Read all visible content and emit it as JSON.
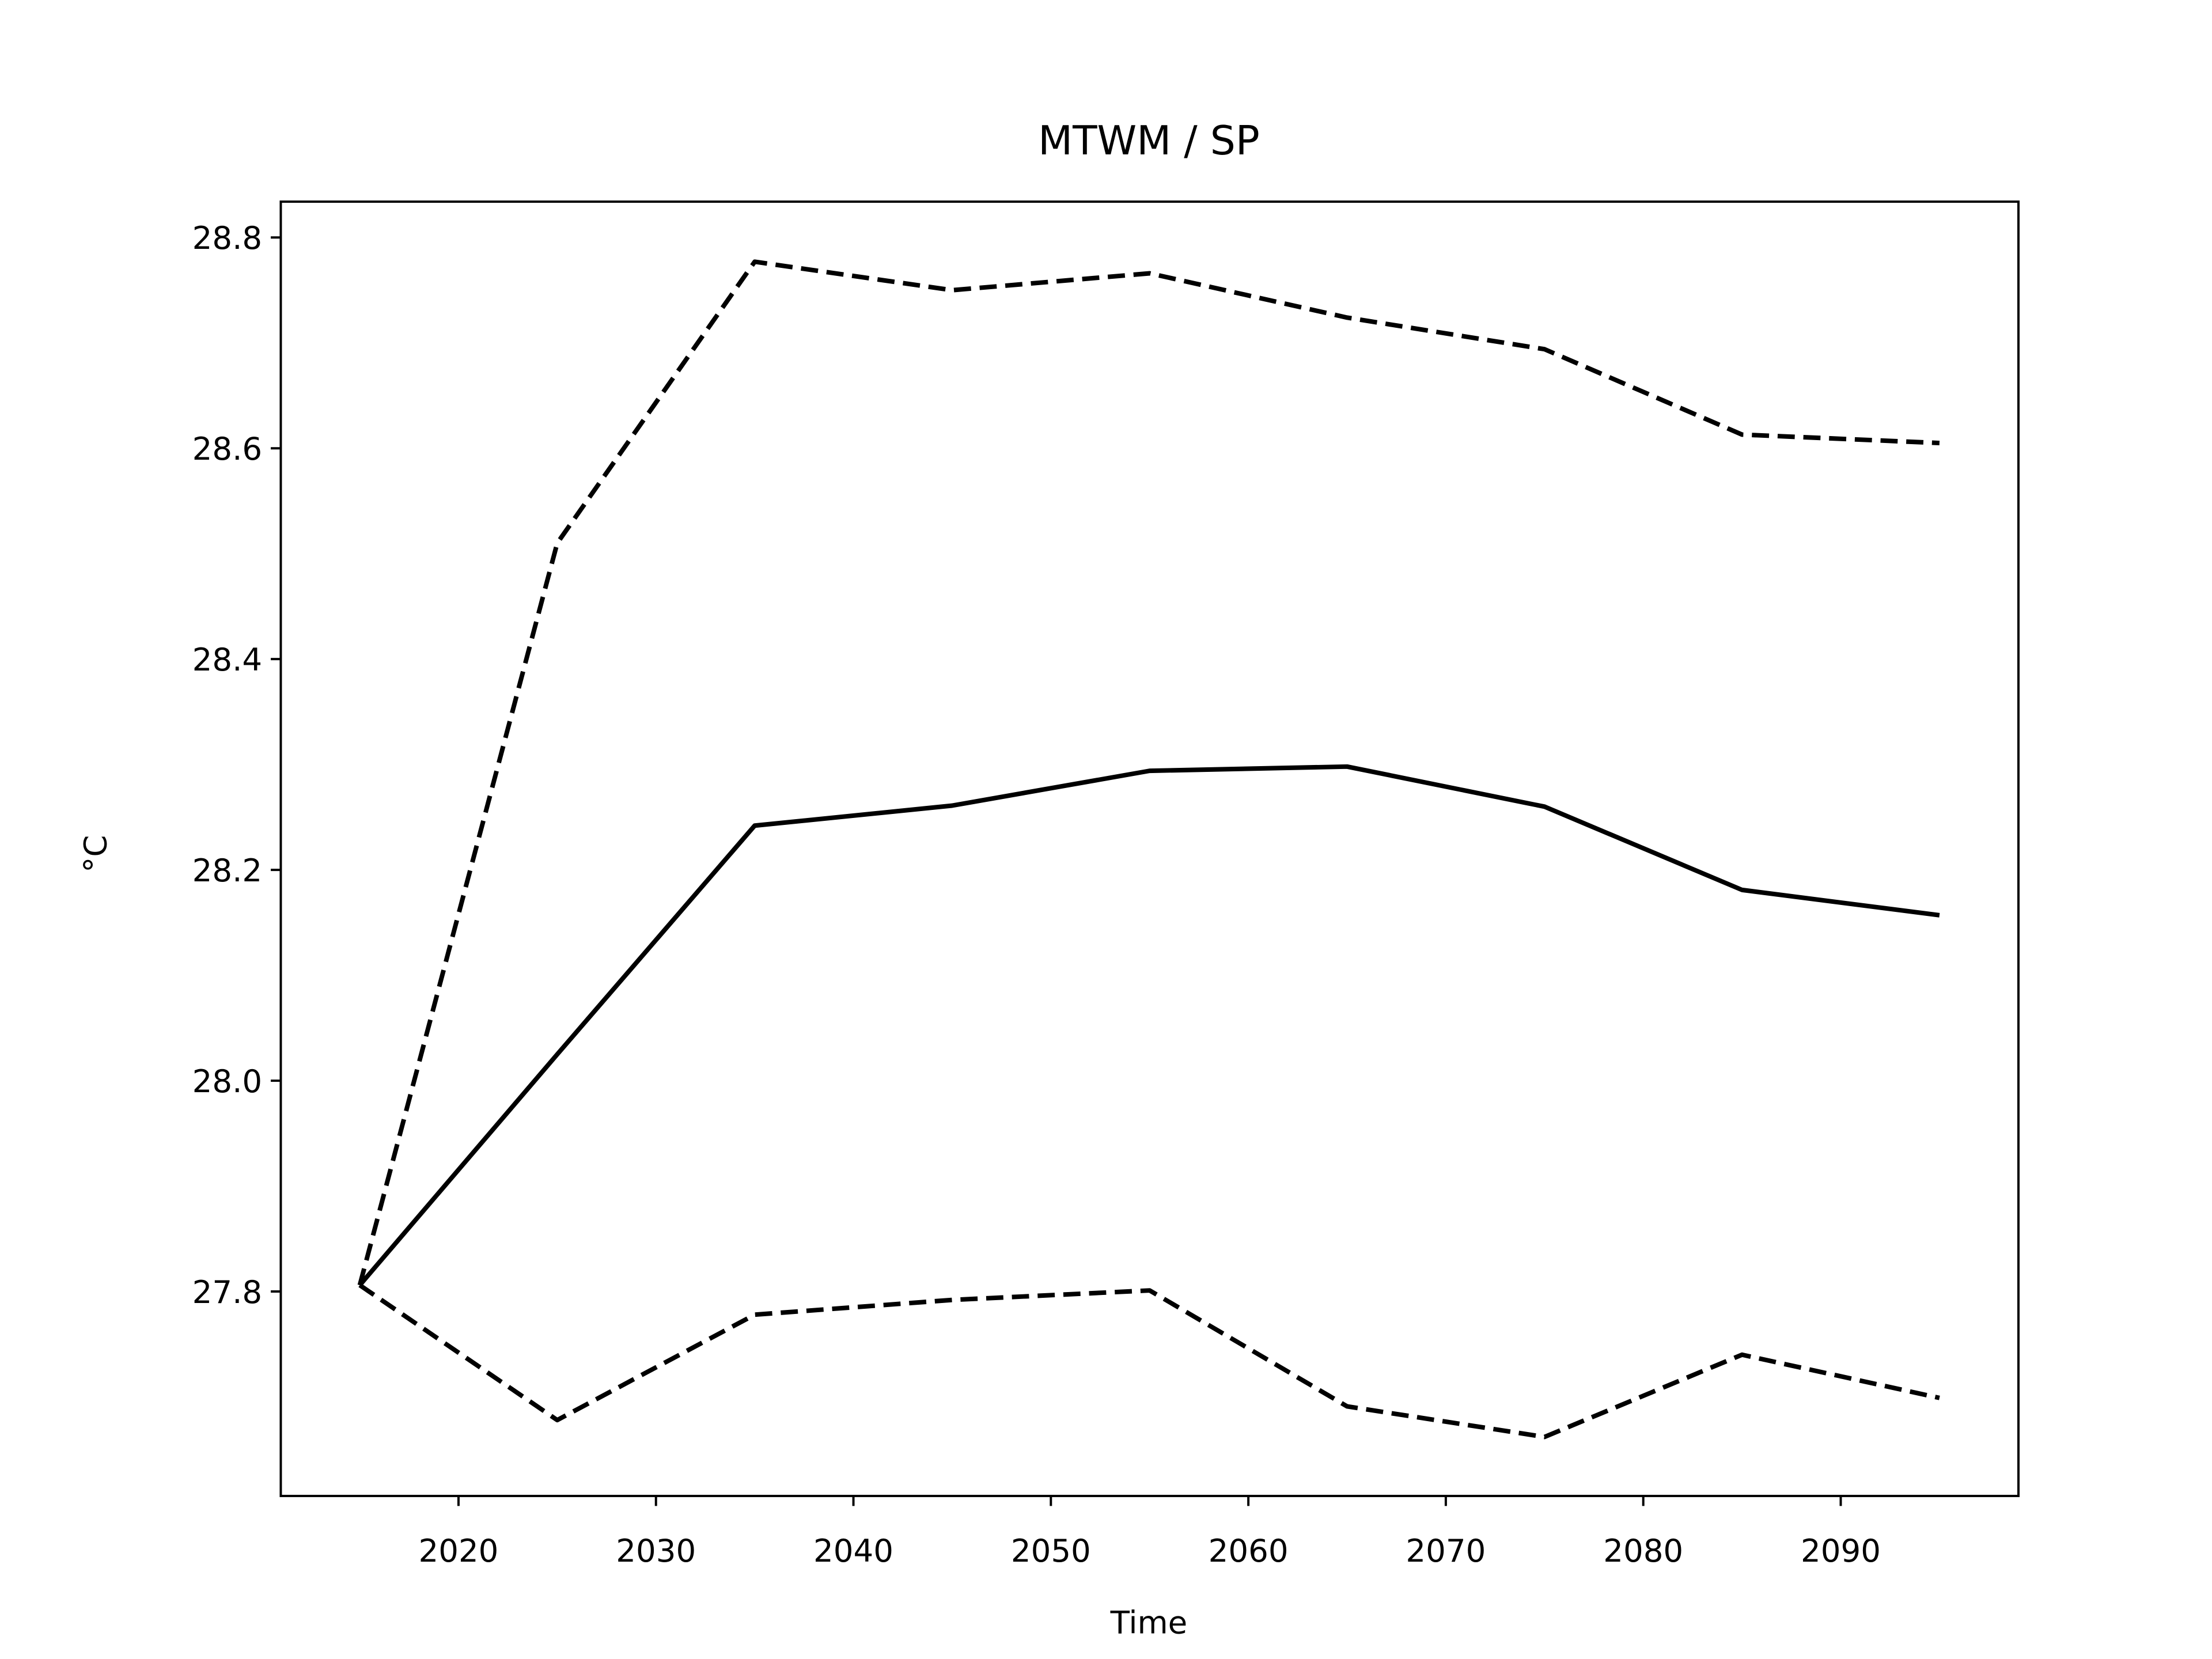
{
  "chart_data": {
    "type": "line",
    "title": "MTWM / SP",
    "x_label": "Time",
    "y_label": "°C",
    "x": [
      2015,
      2025,
      2035,
      2045,
      2055,
      2065,
      2075,
      2085,
      2095
    ],
    "series": [
      {
        "color": "#000000",
        "linestyle": "solid",
        "values": [
          27.806,
          28.025,
          28.242,
          28.261,
          28.294,
          28.298,
          28.26,
          28.181,
          28.157
        ]
      },
      {
        "color": "#000000",
        "linestyle": "dashed",
        "values": [
          27.806,
          28.51,
          28.777,
          28.75,
          28.766,
          28.724,
          28.694,
          28.613,
          28.605
        ]
      },
      {
        "color": "#000000",
        "linestyle": "dashed",
        "values": [
          27.806,
          27.678,
          27.778,
          27.792,
          27.801,
          27.691,
          27.662,
          27.74,
          27.699
        ]
      }
    ],
    "xlim": [
      2011,
      2099
    ],
    "ylim": [
      27.606,
      28.834
    ],
    "xticks": [
      2020,
      2030,
      2040,
      2050,
      2060,
      2070,
      2080,
      2090
    ],
    "yticks": [
      27.8,
      {
        "value": 28,
        "label": "28.0"
      },
      28.2,
      28.4,
      28.6,
      28.8
    ],
    "grid": false
  }
}
